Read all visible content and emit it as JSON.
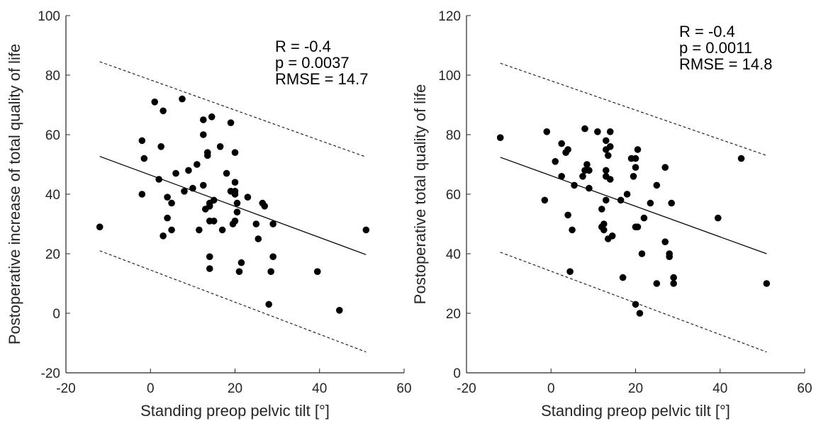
{
  "chart_data": [
    {
      "type": "scatter",
      "xlabel": "Standing preop pelvic tilt [°]",
      "ylabel": "Postoperative increase of total quality of life",
      "xlim": [
        -20,
        60
      ],
      "ylim": [
        -20,
        100
      ],
      "xticks": [
        "-20",
        "0",
        "20",
        "40",
        "60"
      ],
      "yticks": [
        "-20",
        "0",
        "20",
        "40",
        "60",
        "80",
        "100"
      ],
      "stats": [
        "R = -0.4",
        "p = 0.0037",
        "RMSE = 14.7"
      ],
      "fit_line": {
        "x": [
          -12,
          51
        ],
        "y": [
          52.7,
          19.7
        ]
      },
      "prediction_bounds": {
        "upper": {
          "x": [
            -12,
            51
          ],
          "y": [
            84.5,
            52.5
          ]
        },
        "lower": {
          "x": [
            -12,
            51
          ],
          "y": [
            21,
            -13
          ]
        }
      },
      "points": {
        "x": [
          -12,
          -2,
          -1.5,
          -2,
          1,
          3,
          7.5,
          2.5,
          2,
          4,
          4,
          6,
          5,
          3,
          9,
          8,
          11,
          10,
          12.5,
          12.5,
          12.5,
          13.5,
          13.5,
          14.5,
          14,
          13,
          14,
          15,
          15,
          14,
          14,
          14,
          11.5,
          16.5,
          19,
          18,
          19,
          17,
          20,
          20,
          20.5,
          20,
          20.5,
          19.5,
          21.5,
          21,
          20,
          20,
          23,
          25,
          26.5,
          27,
          28.5,
          29,
          28,
          29,
          25.5,
          39.5,
          44.7,
          51,
          5
        ],
        "y": [
          29,
          58,
          52,
          40,
          71,
          68,
          72,
          56,
          45,
          39,
          32,
          47,
          37,
          26,
          48,
          41,
          50,
          42,
          65,
          60,
          43,
          54,
          53,
          66,
          37,
          35,
          31,
          38,
          31,
          36,
          19,
          15,
          28,
          56,
          64,
          47,
          41,
          28,
          44,
          40,
          37,
          31,
          34,
          30,
          17,
          14,
          41,
          54,
          39,
          30,
          37,
          36,
          14,
          19,
          3,
          30,
          25,
          14,
          1,
          28,
          28
        ],
        "note": ""
      }
    },
    {
      "type": "scatter",
      "xlabel": "Standing preop pelvic tilt [°]",
      "ylabel": "Postoperative total quality of life",
      "xlim": [
        -20,
        60
      ],
      "ylim": [
        0,
        120
      ],
      "xticks": [
        "-20",
        "0",
        "20",
        "40",
        "60"
      ],
      "yticks": [
        "0",
        "20",
        "40",
        "60",
        "80",
        "100",
        "120"
      ],
      "stats": [
        "R = -0.4",
        "p = 0.0011",
        "RMSE = 14.8"
      ],
      "fit_line": {
        "x": [
          -12,
          51
        ],
        "y": [
          72.4,
          40
        ]
      },
      "prediction_bounds": {
        "upper": {
          "x": [
            -12,
            51
          ],
          "y": [
            104,
            73
          ]
        },
        "lower": {
          "x": [
            -12,
            51
          ],
          "y": [
            40.5,
            7
          ]
        }
      },
      "points": {
        "x": [
          -12,
          -1,
          -1.5,
          1,
          2.5,
          3.5,
          2.5,
          4,
          5.5,
          4,
          5,
          8,
          8,
          8.5,
          9,
          9,
          7.5,
          11,
          12,
          12.5,
          13,
          13,
          13.5,
          13,
          14,
          14,
          13,
          12.5,
          12,
          14,
          14.5,
          13,
          13.5,
          17,
          18,
          16.5,
          19,
          19.5,
          20.5,
          20,
          20,
          20.5,
          20,
          21,
          22,
          21.5,
          23.5,
          25,
          27,
          27,
          28,
          28,
          28.5,
          29,
          29,
          25,
          39.5,
          45,
          51,
          4.5,
          20
        ],
        "y": [
          79,
          81,
          58,
          71,
          77,
          74,
          66,
          75,
          63,
          53,
          48,
          82,
          68,
          70,
          68,
          62,
          66,
          81,
          55,
          50,
          78,
          75,
          73,
          68,
          81,
          76,
          66,
          48,
          49,
          65,
          46,
          58,
          45,
          32,
          60,
          58,
          72,
          66,
          75,
          72,
          69,
          49,
          23,
          20,
          52,
          40,
          57,
          63,
          44,
          69,
          39,
          40,
          57,
          32,
          30,
          30,
          52,
          72,
          30,
          34,
          49
        ],
        "note": ""
      }
    }
  ]
}
